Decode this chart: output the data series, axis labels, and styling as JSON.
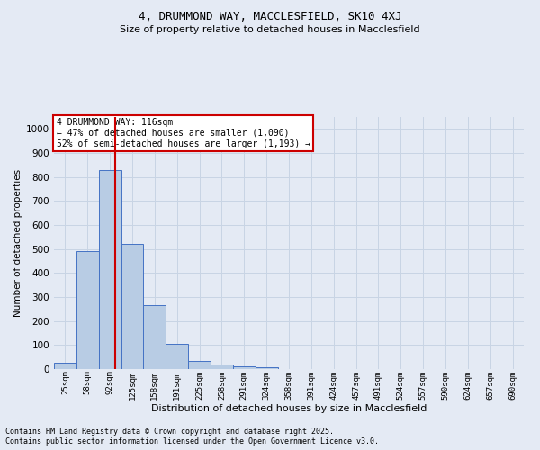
{
  "title1": "4, DRUMMOND WAY, MACCLESFIELD, SK10 4XJ",
  "title2": "Size of property relative to detached houses in Macclesfield",
  "xlabel": "Distribution of detached houses by size in Macclesfield",
  "ylabel": "Number of detached properties",
  "categories": [
    "25sqm",
    "58sqm",
    "92sqm",
    "125sqm",
    "158sqm",
    "191sqm",
    "225sqm",
    "258sqm",
    "291sqm",
    "324sqm",
    "358sqm",
    "391sqm",
    "424sqm",
    "457sqm",
    "491sqm",
    "524sqm",
    "557sqm",
    "590sqm",
    "624sqm",
    "657sqm",
    "690sqm"
  ],
  "values": [
    25,
    490,
    830,
    520,
    265,
    105,
    35,
    20,
    10,
    8,
    0,
    0,
    0,
    0,
    0,
    0,
    0,
    0,
    0,
    0,
    0
  ],
  "bar_color": "#b8cce4",
  "bar_edge_color": "#4472c4",
  "grid_color": "#c8d4e4",
  "bg_color": "#e4eaf4",
  "vline_color": "#cc0000",
  "annotation_text": "4 DRUMMOND WAY: 116sqm\n← 47% of detached houses are smaller (1,090)\n52% of semi-detached houses are larger (1,193) →",
  "annotation_box_color": "#ffffff",
  "annotation_edge_color": "#cc0000",
  "ylim": [
    0,
    1050
  ],
  "yticks": [
    0,
    100,
    200,
    300,
    400,
    500,
    600,
    700,
    800,
    900,
    1000
  ],
  "footnote1": "Contains HM Land Registry data © Crown copyright and database right 2025.",
  "footnote2": "Contains public sector information licensed under the Open Government Licence v3.0."
}
